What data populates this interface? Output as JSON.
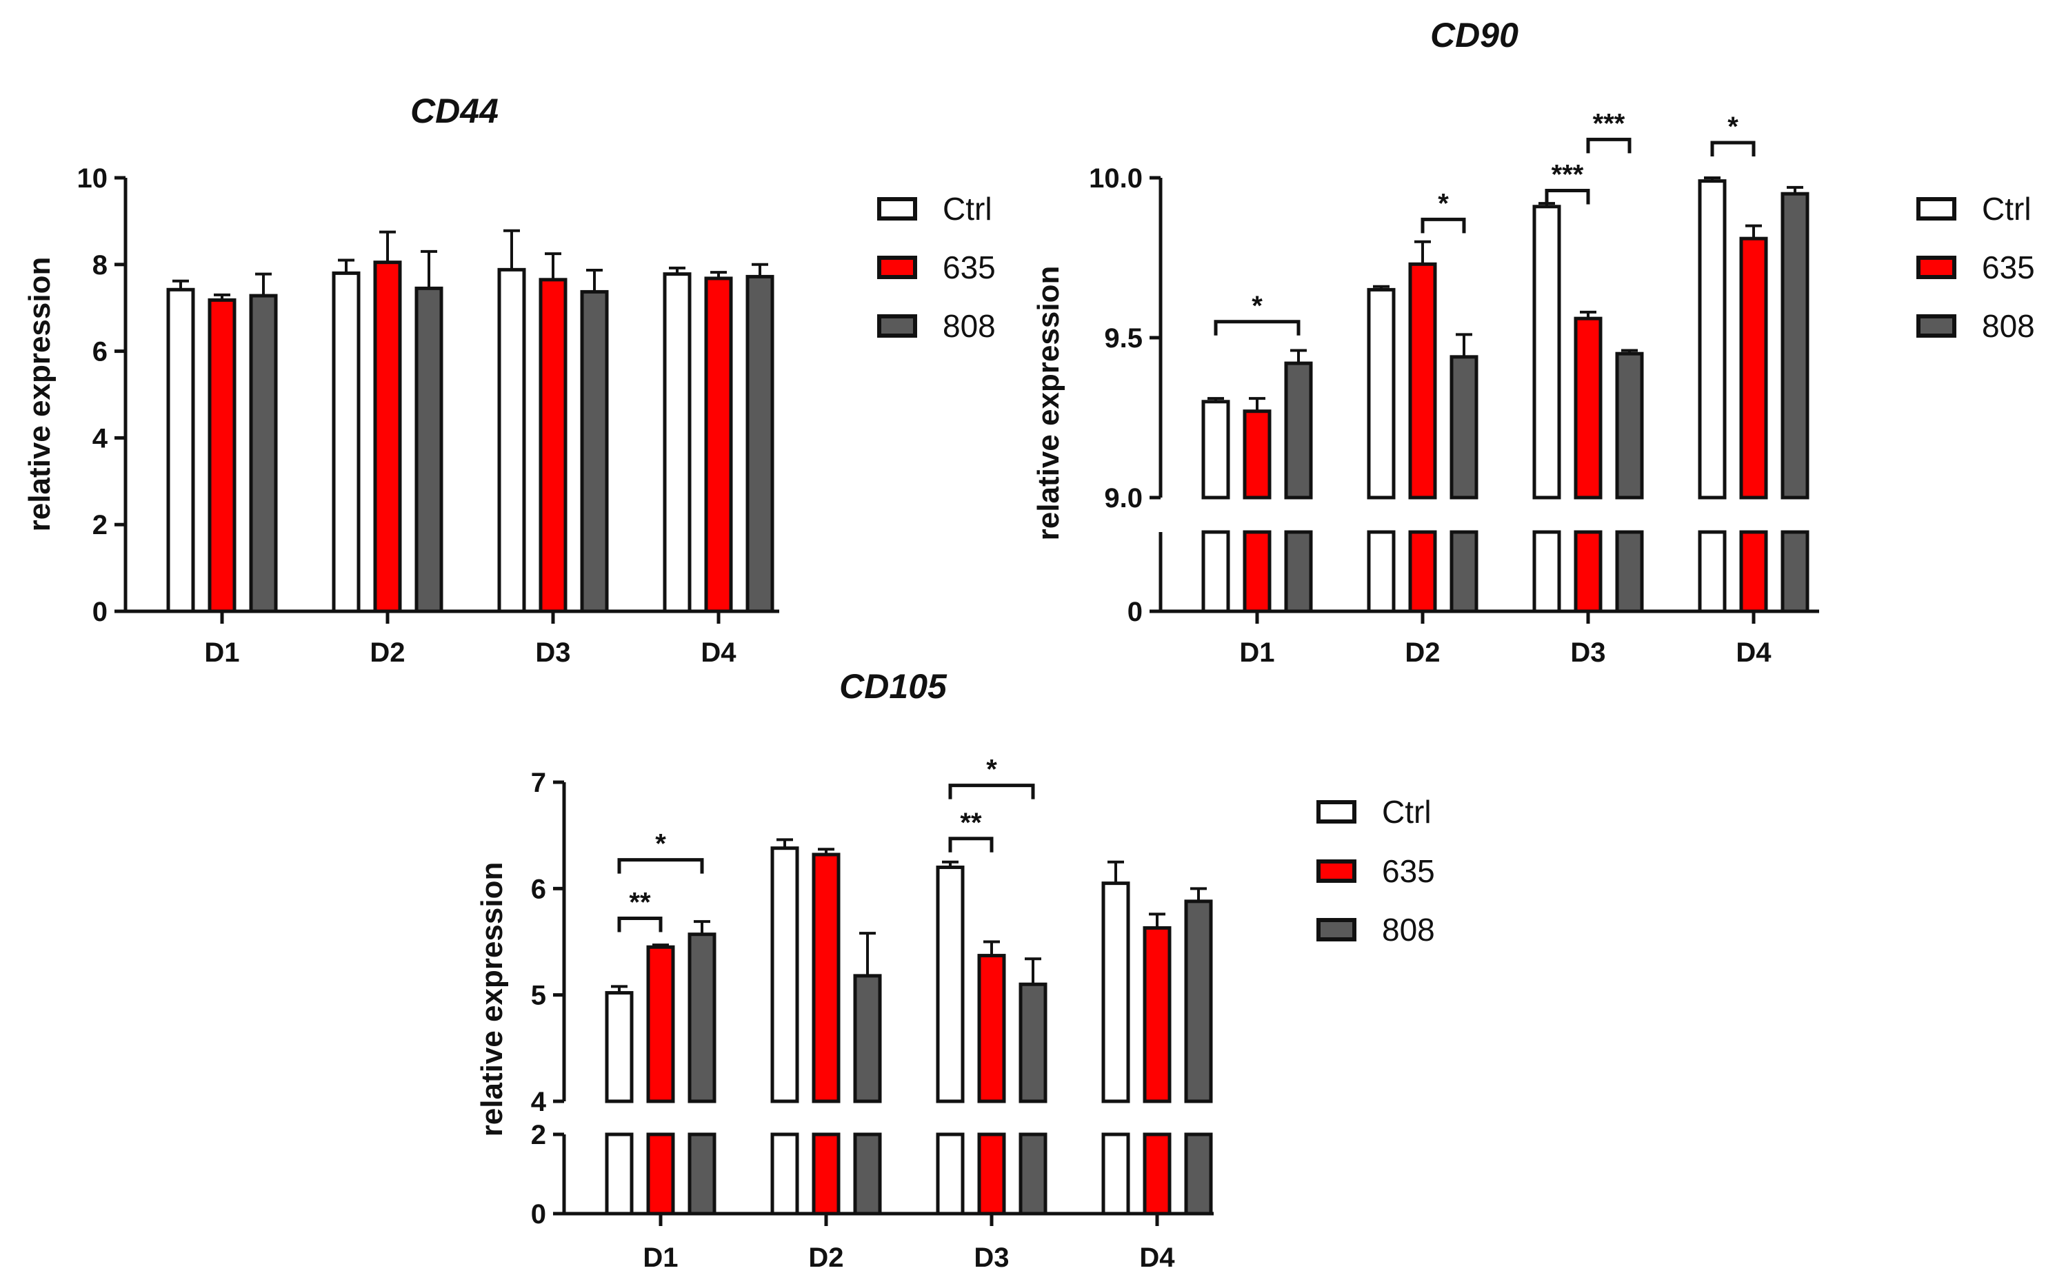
{
  "colors": {
    "Ctrl": "#ffffff",
    "635": "#ff0000",
    "808": "#5a5a5a",
    "stroke": "#111111"
  },
  "chart_data": [
    {
      "type": "bar",
      "title": "CD44",
      "ylabel": "relative expression",
      "xlabel": "",
      "categories": [
        "D1",
        "D2",
        "D3",
        "D4"
      ],
      "ylim": [
        0,
        10
      ],
      "yticks": [
        "0",
        "2",
        "4",
        "6",
        "8",
        "10"
      ],
      "legend": [
        "Ctrl",
        "635",
        "808"
      ],
      "series": [
        {
          "name": "Ctrl",
          "values": [
            7.42,
            7.8,
            7.88,
            7.78
          ],
          "errors": [
            0.2,
            0.3,
            0.9,
            0.14
          ]
        },
        {
          "name": "635",
          "values": [
            7.18,
            8.05,
            7.65,
            7.68
          ],
          "errors": [
            0.12,
            0.7,
            0.6,
            0.14
          ]
        },
        {
          "name": "808",
          "values": [
            7.28,
            7.45,
            7.37,
            7.72
          ],
          "errors": [
            0.5,
            0.85,
            0.5,
            0.28
          ]
        }
      ],
      "significance": []
    },
    {
      "type": "bar",
      "title": "CD90",
      "ylabel": "relative expression",
      "xlabel": "",
      "categories": [
        "D1",
        "D2",
        "D3",
        "D4"
      ],
      "ylim": [
        9.0,
        10.0
      ],
      "axis_break": true,
      "yticks": [
        "0",
        "9.0",
        "9.5",
        "10.0"
      ],
      "legend": [
        "Ctrl",
        "635",
        "808"
      ],
      "series": [
        {
          "name": "Ctrl",
          "values": [
            9.3,
            9.65,
            9.91,
            9.99
          ],
          "errors": [
            0.01,
            0.01,
            0.01,
            0.01
          ]
        },
        {
          "name": "635",
          "values": [
            9.27,
            9.73,
            9.56,
            9.81
          ],
          "errors": [
            0.04,
            0.07,
            0.02,
            0.04
          ]
        },
        {
          "name": "808",
          "values": [
            9.42,
            9.44,
            9.45,
            9.95
          ],
          "errors": [
            0.04,
            0.07,
            0.01,
            0.02
          ]
        }
      ],
      "significance": [
        {
          "group": "D1",
          "from": "Ctrl",
          "to": "808",
          "label": "*",
          "y": 9.55
        },
        {
          "group": "D2",
          "from": "635",
          "to": "808",
          "label": "*",
          "y": 9.87
        },
        {
          "group": "D3",
          "from": "Ctrl",
          "to": "635",
          "label": "***",
          "y": 9.96
        },
        {
          "group": "D3",
          "from": "635",
          "to": "808",
          "label": "***",
          "y": 10.12
        },
        {
          "group": "D4",
          "from": "Ctrl",
          "to": "635",
          "label": "*",
          "y": 10.11
        }
      ]
    },
    {
      "type": "bar",
      "title": "CD105",
      "ylabel": "relative expression",
      "xlabel": "",
      "categories": [
        "D1",
        "D2",
        "D3",
        "D4"
      ],
      "ylim": [
        4,
        7
      ],
      "axis_break": true,
      "yticks": [
        "0",
        "2",
        "4",
        "5",
        "6",
        "7"
      ],
      "legend": [
        "Ctrl",
        "635",
        "808"
      ],
      "series": [
        {
          "name": "Ctrl",
          "values": [
            5.02,
            6.38,
            6.2,
            6.05
          ],
          "errors": [
            0.06,
            0.08,
            0.05,
            0.2
          ]
        },
        {
          "name": "635",
          "values": [
            5.45,
            6.32,
            5.37,
            5.63
          ],
          "errors": [
            0.02,
            0.05,
            0.13,
            0.13
          ]
        },
        {
          "name": "808",
          "values": [
            5.57,
            5.18,
            5.1,
            5.88
          ],
          "errors": [
            0.12,
            0.4,
            0.24,
            0.12
          ]
        }
      ],
      "significance": [
        {
          "group": "D1",
          "from": "Ctrl",
          "to": "635",
          "label": "**",
          "y": 5.72
        },
        {
          "group": "D1",
          "from": "Ctrl",
          "to": "808",
          "label": "*",
          "y": 6.27
        },
        {
          "group": "D3",
          "from": "Ctrl",
          "to": "635",
          "label": "**",
          "y": 6.47
        },
        {
          "group": "D3",
          "from": "Ctrl",
          "to": "808",
          "label": "*",
          "y": 6.97
        }
      ]
    }
  ]
}
